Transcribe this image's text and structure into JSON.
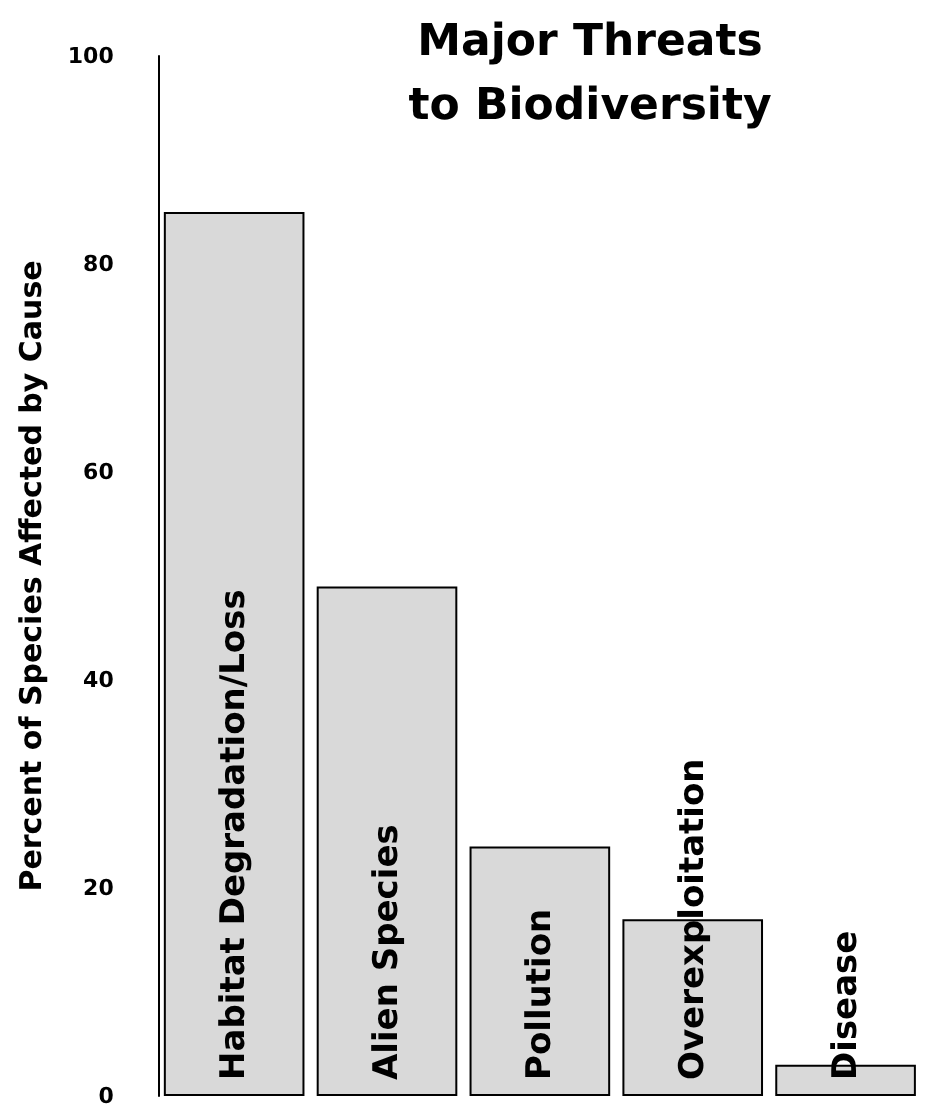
{
  "chart_data": {
    "type": "bar",
    "title": "Major Threats\nto Biodiversity",
    "ylabel": "Percent of Species Affected by Cause",
    "categories": [
      "Habitat Degradation/Loss",
      "Alien Species",
      "Pollution",
      "Overexploitation",
      "Disease"
    ],
    "values": [
      85,
      49,
      24,
      17,
      3
    ],
    "color": "#d9d9d9",
    "ylim": [
      0,
      100
    ],
    "yticks": [
      0,
      20,
      40,
      60,
      80,
      100
    ],
    "grid": false
  }
}
